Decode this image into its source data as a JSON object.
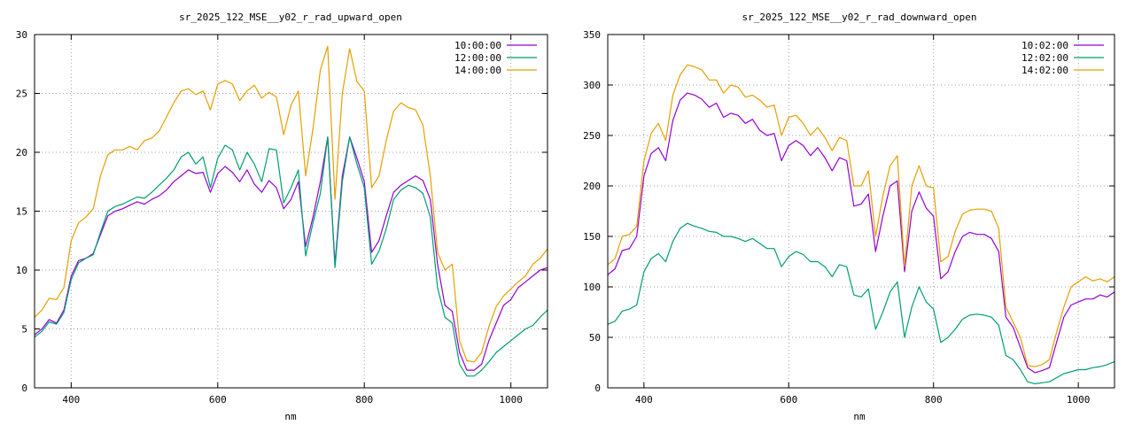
{
  "chart_data": [
    {
      "type": "line",
      "title": "sr_2025_122_MSE__y02_r_rad_upward_open",
      "xlabel": "nm",
      "ylabel": "",
      "xlim": [
        350,
        1050
      ],
      "ylim": [
        0,
        30
      ],
      "xticks": [
        400,
        600,
        800,
        1000
      ],
      "yticks": [
        0,
        5,
        10,
        15,
        20,
        25,
        30
      ],
      "grid": true,
      "legend": "top-right",
      "x": [
        350,
        360,
        370,
        380,
        390,
        400,
        410,
        420,
        430,
        440,
        450,
        460,
        470,
        480,
        490,
        500,
        510,
        520,
        530,
        540,
        550,
        560,
        570,
        580,
        590,
        600,
        610,
        620,
        630,
        640,
        650,
        660,
        670,
        680,
        690,
        700,
        710,
        720,
        730,
        740,
        750,
        760,
        770,
        780,
        790,
        800,
        810,
        820,
        830,
        840,
        850,
        860,
        870,
        880,
        890,
        900,
        910,
        920,
        930,
        940,
        950,
        960,
        970,
        980,
        990,
        1000,
        1010,
        1020,
        1030,
        1040,
        1050
      ],
      "series": [
        {
          "name": "10:00:00",
          "color": "#9400d3",
          "values": [
            4.5,
            5.0,
            5.8,
            5.5,
            6.6,
            9.5,
            10.8,
            11.0,
            11.4,
            13.0,
            14.6,
            15.0,
            15.2,
            15.5,
            15.8,
            15.6,
            16.0,
            16.3,
            16.8,
            17.5,
            18.0,
            18.5,
            18.2,
            18.3,
            16.6,
            18.2,
            18.8,
            18.3,
            17.5,
            18.5,
            17.3,
            16.6,
            17.6,
            17.0,
            15.2,
            16.0,
            17.5,
            12.0,
            14.5,
            17.5,
            21.3,
            10.5,
            18.0,
            21.3,
            19.5,
            17.5,
            11.5,
            12.5,
            14.6,
            16.6,
            17.2,
            17.6,
            18.0,
            17.6,
            16.0,
            10.5,
            7.0,
            6.5,
            3.0,
            1.5,
            1.5,
            2.0,
            4.0,
            5.5,
            7.0,
            7.5,
            8.5,
            9.0,
            9.5,
            10.0,
            10.2
          ]
        },
        {
          "name": "12:00:00",
          "color": "#009e73",
          "values": [
            4.3,
            4.8,
            5.6,
            5.4,
            6.4,
            9.2,
            10.6,
            11.0,
            11.3,
            13.2,
            15.0,
            15.4,
            15.6,
            15.9,
            16.2,
            16.1,
            16.6,
            17.2,
            17.8,
            18.5,
            19.6,
            20.0,
            19.0,
            19.6,
            17.0,
            19.5,
            20.6,
            20.2,
            18.5,
            20.0,
            19.0,
            17.5,
            20.3,
            20.2,
            15.7,
            17.0,
            18.5,
            11.2,
            14.0,
            16.5,
            21.3,
            10.2,
            17.5,
            21.3,
            19.0,
            17.0,
            10.5,
            11.6,
            13.5,
            16.0,
            16.8,
            17.2,
            17.0,
            16.5,
            14.5,
            8.5,
            6.0,
            5.5,
            2.0,
            1.0,
            1.0,
            1.5,
            2.2,
            3.0,
            3.5,
            4.0,
            4.5,
            5.0,
            5.3,
            6.0,
            6.6
          ]
        },
        {
          "name": "14:00:00",
          "color": "#e69f00",
          "values": [
            6.0,
            6.6,
            7.6,
            7.5,
            8.5,
            12.5,
            14.0,
            14.5,
            15.2,
            18.0,
            19.8,
            20.2,
            20.2,
            20.5,
            20.2,
            21.0,
            21.2,
            21.8,
            23.0,
            24.2,
            25.2,
            25.4,
            24.9,
            25.2,
            23.6,
            25.8,
            26.1,
            25.8,
            24.4,
            25.2,
            25.7,
            24.6,
            25.1,
            24.7,
            21.5,
            24.0,
            25.2,
            18.0,
            22.0,
            27.0,
            29.0,
            16.0,
            25.0,
            28.8,
            26.0,
            25.2,
            17.0,
            18.0,
            21.0,
            23.5,
            24.2,
            23.8,
            23.6,
            22.3,
            18.0,
            11.5,
            10.0,
            10.5,
            4.0,
            2.3,
            2.2,
            3.0,
            5.2,
            6.9,
            7.8,
            8.4,
            9.0,
            9.5,
            10.5,
            11.0,
            11.8
          ]
        }
      ]
    },
    {
      "type": "line",
      "title": "sr_2025_122_MSE__y02_r_rad_downward_open",
      "xlabel": "nm",
      "ylabel": "",
      "xlim": [
        350,
        1050
      ],
      "ylim": [
        0,
        350
      ],
      "xticks": [
        400,
        600,
        800,
        1000
      ],
      "yticks": [
        0,
        50,
        100,
        150,
        200,
        250,
        300,
        350
      ],
      "grid": true,
      "legend": "top-right",
      "x": [
        350,
        360,
        370,
        380,
        390,
        400,
        410,
        420,
        430,
        440,
        450,
        460,
        470,
        480,
        490,
        500,
        510,
        520,
        530,
        540,
        550,
        560,
        570,
        580,
        590,
        600,
        610,
        620,
        630,
        640,
        650,
        660,
        670,
        680,
        690,
        700,
        710,
        720,
        730,
        740,
        750,
        760,
        770,
        780,
        790,
        800,
        810,
        820,
        830,
        840,
        850,
        860,
        870,
        880,
        890,
        900,
        910,
        920,
        930,
        940,
        950,
        960,
        970,
        980,
        990,
        1000,
        1010,
        1020,
        1030,
        1040,
        1050
      ],
      "series": [
        {
          "name": "10:02:00",
          "color": "#9400d3",
          "values": [
            112,
            118,
            136,
            138,
            150,
            210,
            232,
            238,
            225,
            265,
            285,
            292,
            290,
            286,
            278,
            282,
            268,
            272,
            270,
            262,
            266,
            255,
            250,
            252,
            225,
            240,
            245,
            240,
            230,
            238,
            228,
            215,
            228,
            225,
            180,
            182,
            192,
            135,
            170,
            200,
            205,
            115,
            175,
            194,
            178,
            170,
            108,
            115,
            135,
            150,
            154,
            152,
            152,
            148,
            135,
            70,
            60,
            40,
            20,
            15,
            17,
            20,
            45,
            70,
            82,
            85,
            88,
            88,
            92,
            90,
            95
          ]
        },
        {
          "name": "12:02:00",
          "color": "#009e73",
          "values": [
            63,
            66,
            76,
            78,
            82,
            115,
            128,
            133,
            125,
            145,
            158,
            163,
            160,
            158,
            155,
            154,
            150,
            150,
            148,
            145,
            148,
            143,
            138,
            138,
            120,
            130,
            135,
            132,
            125,
            125,
            120,
            110,
            122,
            120,
            92,
            90,
            98,
            58,
            75,
            95,
            105,
            50,
            80,
            100,
            85,
            78,
            45,
            50,
            58,
            68,
            72,
            73,
            72,
            70,
            62,
            32,
            28,
            18,
            6,
            4,
            5,
            6,
            10,
            14,
            16,
            18,
            18,
            20,
            21,
            23,
            26
          ]
        },
        {
          "name": "14:02:00",
          "color": "#e69f00",
          "values": [
            122,
            128,
            150,
            152,
            160,
            225,
            252,
            262,
            245,
            290,
            310,
            320,
            318,
            315,
            305,
            305,
            292,
            300,
            298,
            288,
            290,
            285,
            278,
            280,
            250,
            268,
            270,
            262,
            250,
            258,
            248,
            235,
            248,
            245,
            200,
            200,
            215,
            150,
            190,
            220,
            230,
            120,
            200,
            220,
            200,
            198,
            125,
            130,
            155,
            172,
            176,
            177,
            177,
            175,
            158,
            80,
            65,
            50,
            22,
            21,
            23,
            28,
            55,
            80,
            100,
            105,
            110,
            106,
            108,
            105,
            110
          ]
        }
      ]
    }
  ]
}
